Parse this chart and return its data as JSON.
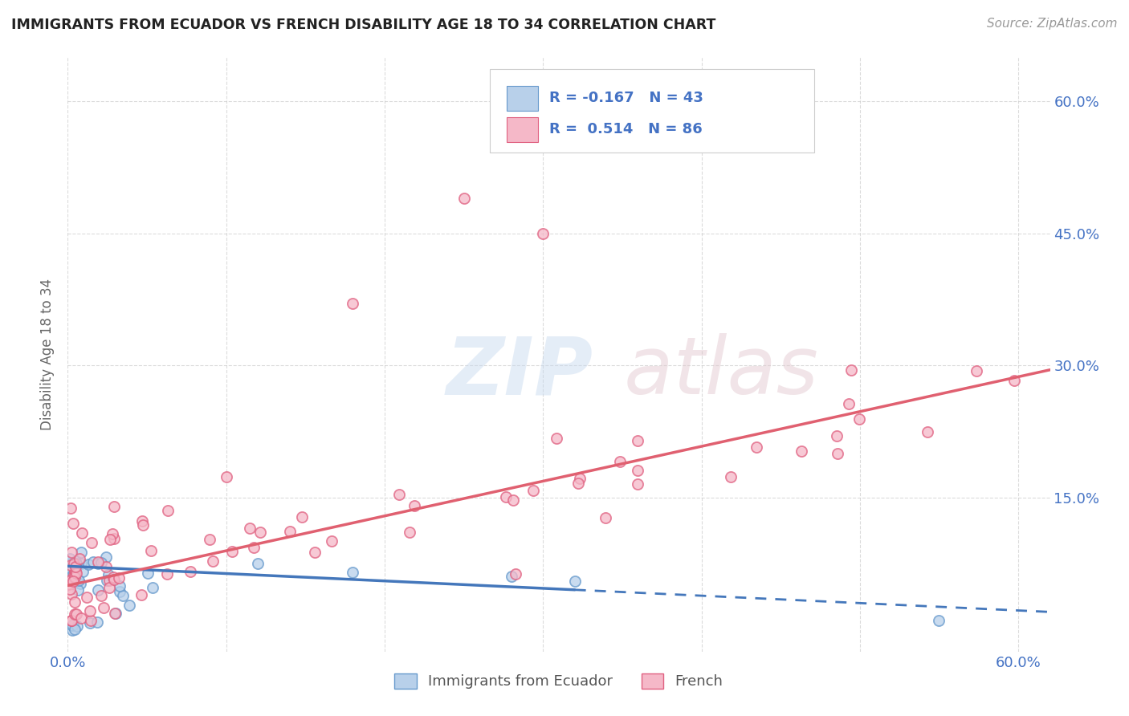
{
  "title": "IMMIGRANTS FROM ECUADOR VS FRENCH DISABILITY AGE 18 TO 34 CORRELATION CHART",
  "source": "Source: ZipAtlas.com",
  "ylabel": "Disability Age 18 to 34",
  "xlim": [
    0.0,
    0.62
  ],
  "ylim": [
    -0.025,
    0.65
  ],
  "legend_R1": "-0.167",
  "legend_N1": "43",
  "legend_R2": "0.514",
  "legend_N2": "86",
  "legend_label1": "Immigrants from Ecuador",
  "legend_label2": "French",
  "color_ecuador_fill": "#b8d0ea",
  "color_ecuador_edge": "#6699cc",
  "color_french_fill": "#f5b8c8",
  "color_french_edge": "#e06080",
  "color_ecuador_line": "#4477bb",
  "color_french_line": "#e06070",
  "color_text_blue": "#4472c4",
  "background_color": "#ffffff",
  "grid_color": "#cccccc",
  "ec_line_start_x": 0.0,
  "ec_line_end_x": 0.62,
  "ec_line_start_y": 0.072,
  "ec_line_end_y": 0.02,
  "fr_line_start_x": 0.0,
  "fr_line_end_x": 0.62,
  "fr_line_start_y": 0.05,
  "fr_line_end_y": 0.295
}
